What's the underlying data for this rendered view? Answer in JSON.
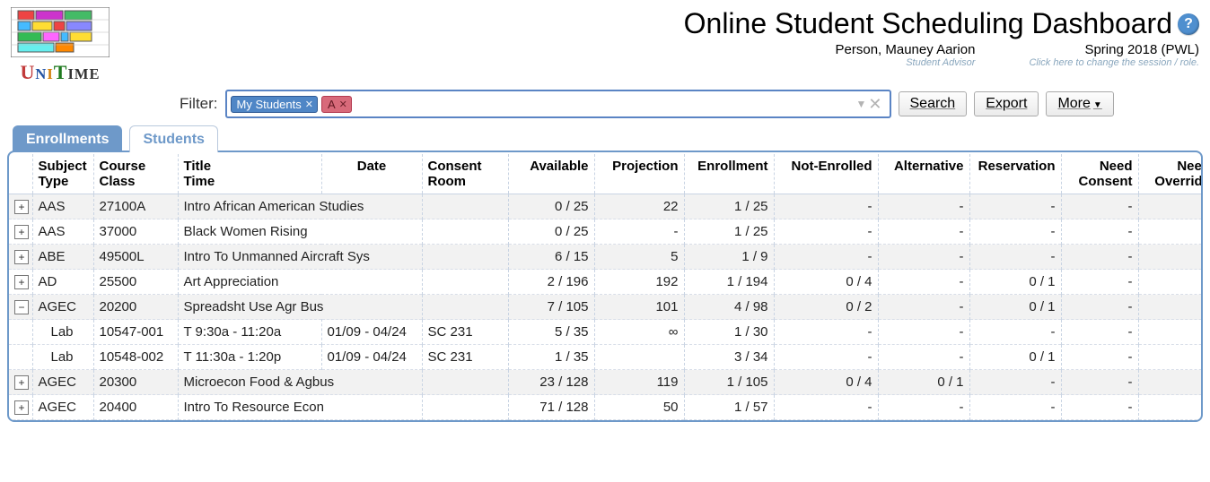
{
  "page": {
    "title": "Online Student Scheduling Dashboard",
    "person": "Person, Mauney Aarion",
    "person_role": "Student Advisor",
    "session": "Spring 2018 (PWL)",
    "session_hint": "Click here to change the session / role."
  },
  "filter": {
    "label": "Filter:",
    "chips": [
      {
        "label": "My Students",
        "color": "blue"
      },
      {
        "label": "A",
        "color": "red"
      }
    ],
    "buttons": {
      "search": "Search",
      "export": "Export",
      "more": "More"
    }
  },
  "tabs": [
    {
      "id": "enrollments",
      "label": "Enrollments",
      "active": true
    },
    {
      "id": "students",
      "label": "Students",
      "active": false
    }
  ],
  "columns": {
    "subject": {
      "l1": "Subject",
      "l2": "Type"
    },
    "course": {
      "l1": "Course",
      "l2": "Class"
    },
    "title": {
      "l1": "Title",
      "l2": "Time"
    },
    "date": {
      "l1": "",
      "l2": "Date"
    },
    "consent": {
      "l1": "Consent",
      "l2": "Room"
    },
    "available": "Available",
    "projection": "Projection",
    "enrollment": "Enrollment",
    "notenrolled": "Not-Enrolled",
    "alternative": "Alternative",
    "reservation": "Reservation",
    "needconsent": {
      "l1": "Need",
      "l2": "Consent"
    },
    "needoverride": {
      "l1": "Need",
      "l2": "Override"
    }
  },
  "rows": [
    {
      "expand": "+",
      "subject": "AAS",
      "course": "27100A",
      "title": "Intro African American Studies",
      "date": "",
      "room": "",
      "available": "0 / 25",
      "projection": "22",
      "enrollment": "1 / 25",
      "notenrolled": "-",
      "alternative": "-",
      "reservation": "-",
      "needconsent": "-",
      "needoverride": "-",
      "striped": true
    },
    {
      "expand": "+",
      "subject": "AAS",
      "course": "37000",
      "title": "Black Women Rising",
      "date": "",
      "room": "",
      "available": "0 / 25",
      "projection": "-",
      "enrollment": "1 / 25",
      "notenrolled": "-",
      "alternative": "-",
      "reservation": "-",
      "needconsent": "-",
      "needoverride": "-",
      "striped": false
    },
    {
      "expand": "+",
      "subject": "ABE",
      "course": "49500L",
      "title": "Intro To Unmanned Aircraft Sys",
      "date": "",
      "room": "",
      "available": "6 / 15",
      "projection": "5",
      "enrollment": "1 / 9",
      "notenrolled": "-",
      "alternative": "-",
      "reservation": "-",
      "needconsent": "-",
      "needoverride": "-",
      "striped": true
    },
    {
      "expand": "+",
      "subject": "AD",
      "course": "25500",
      "title": "Art Appreciation",
      "date": "",
      "room": "",
      "available": "2 / 196",
      "projection": "192",
      "enrollment": "1 / 194",
      "notenrolled": "0 / 4",
      "alternative": "-",
      "reservation": "0 / 1",
      "needconsent": "-",
      "needoverride": "-",
      "striped": false
    },
    {
      "expand": "−",
      "subject": "AGEC",
      "course": "20200",
      "title": "Spreadsht Use Agr Bus",
      "date": "",
      "room": "",
      "available": "7 / 105",
      "projection": "101",
      "enrollment": "4 / 98",
      "notenrolled": "0 / 2",
      "alternative": "-",
      "reservation": "0 / 1",
      "needconsent": "-",
      "needoverride": "-",
      "striped": true
    },
    {
      "expand": "",
      "subject": "Lab",
      "course": "10547-001",
      "title": "T 9:30a - 11:20a",
      "date": "01/09 - 04/24",
      "room": "SC 231",
      "available": "5 / 35",
      "projection": "∞",
      "enrollment": "1 / 30",
      "notenrolled": "-",
      "alternative": "-",
      "reservation": "-",
      "needconsent": "-",
      "needoverride": "",
      "striped": false,
      "indent": true
    },
    {
      "expand": "",
      "subject": "Lab",
      "course": "10548-002",
      "title": "T 11:30a - 1:20p",
      "date": "01/09 - 04/24",
      "room": "SC 231",
      "available": "1 / 35",
      "projection": "",
      "enrollment": "3 / 34",
      "notenrolled": "-",
      "alternative": "-",
      "reservation": "0 / 1",
      "needconsent": "-",
      "needoverride": "",
      "striped": false,
      "indent": true
    },
    {
      "expand": "+",
      "subject": "AGEC",
      "course": "20300",
      "title": "Microecon Food & Agbus",
      "date": "",
      "room": "",
      "available": "23 / 128",
      "projection": "119",
      "enrollment": "1 / 105",
      "notenrolled": "0 / 4",
      "alternative": "0 / 1",
      "reservation": "-",
      "needconsent": "-",
      "needoverride": "-",
      "striped": true
    },
    {
      "expand": "+",
      "subject": "AGEC",
      "course": "20400",
      "title": "Intro To Resource Econ",
      "date": "",
      "room": "",
      "available": "71 / 128",
      "projection": "50",
      "enrollment": "1 / 57",
      "notenrolled": "-",
      "alternative": "-",
      "reservation": "-",
      "needconsent": "-",
      "needoverride": "-",
      "striped": false
    }
  ],
  "style": {
    "accent": "#6e99c9",
    "border": "#c9d4e3",
    "chip_blue": "#4f86c6",
    "chip_red": "#d86a7a",
    "row_stripe": "#f2f2f2"
  }
}
